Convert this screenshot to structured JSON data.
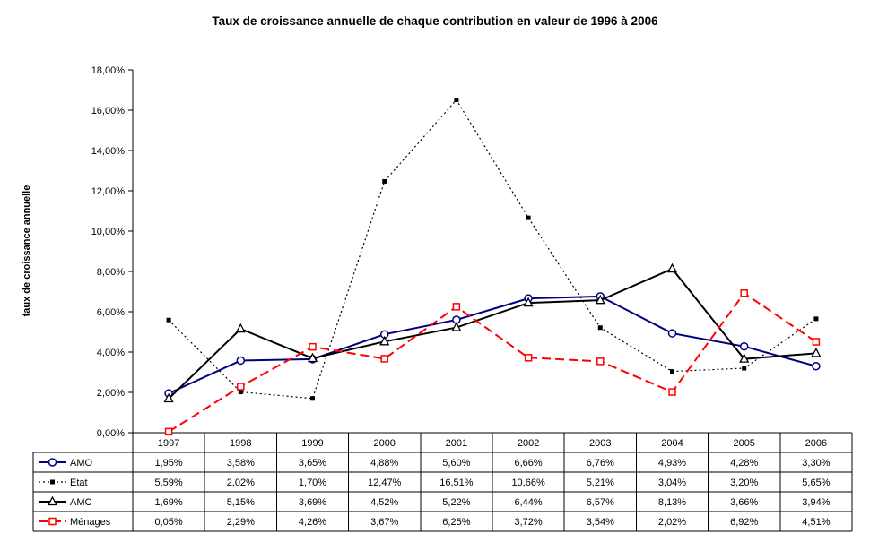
{
  "title": "Taux de croissance annuelle de chaque contribution en valeur de 1996 à 2006",
  "ylabel": "taux de croissance annuelle",
  "chart_data": {
    "type": "line",
    "title": "Taux de croissance annuelle de chaque contribution en valeur de 1996 à 2006",
    "xlabel": "",
    "ylabel": "taux de croissance annuelle",
    "categories": [
      "1997",
      "1998",
      "1999",
      "2000",
      "2001",
      "2002",
      "2003",
      "2004",
      "2005",
      "2006"
    ],
    "ylim": [
      0,
      18
    ],
    "ytick_step": 2,
    "ytick_labels": [
      "0,00%",
      "2,00%",
      "4,00%",
      "6,00%",
      "8,00%",
      "10,00%",
      "12,00%",
      "14,00%",
      "16,00%",
      "18,00%"
    ],
    "grid": false,
    "legend_position": "table-left",
    "series": [
      {
        "key": "amo",
        "name": "AMO",
        "color": "#000080",
        "line": "solid",
        "marker": "circle",
        "values": [
          1.95,
          3.58,
          3.65,
          4.88,
          5.6,
          6.66,
          6.76,
          4.93,
          4.28,
          3.3
        ],
        "labels": [
          "1,95%",
          "3,58%",
          "3,65%",
          "4,88%",
          "5,60%",
          "6,66%",
          "6,76%",
          "4,93%",
          "4,28%",
          "3,30%"
        ]
      },
      {
        "key": "etat",
        "name": "Etat",
        "color": "#000000",
        "line": "dotted",
        "marker": "square-filled",
        "values": [
          5.59,
          2.02,
          1.7,
          12.47,
          16.51,
          10.66,
          5.21,
          3.04,
          3.2,
          5.65
        ],
        "labels": [
          "5,59%",
          "2,02%",
          "1,70%",
          "12,47%",
          "16,51%",
          "10,66%",
          "5,21%",
          "3,04%",
          "3,20%",
          "5,65%"
        ]
      },
      {
        "key": "amc",
        "name": "AMC",
        "color": "#000000",
        "line": "solid",
        "marker": "triangle",
        "values": [
          1.69,
          5.15,
          3.69,
          4.52,
          5.22,
          6.44,
          6.57,
          8.13,
          3.66,
          3.94
        ],
        "labels": [
          "1,69%",
          "5,15%",
          "3,69%",
          "4,52%",
          "5,22%",
          "6,44%",
          "6,57%",
          "8,13%",
          "3,66%",
          "3,94%"
        ]
      },
      {
        "key": "menages",
        "name": "Ménages",
        "color": "#FF0000",
        "line": "dashed",
        "marker": "square-open",
        "values": [
          0.05,
          2.29,
          4.26,
          3.67,
          6.25,
          3.72,
          3.54,
          2.02,
          6.92,
          4.51
        ],
        "labels": [
          "0,05%",
          "2,29%",
          "4,26%",
          "3,67%",
          "6,25%",
          "3,72%",
          "3,54%",
          "2,02%",
          "6,92%",
          "4,51%"
        ]
      }
    ]
  }
}
